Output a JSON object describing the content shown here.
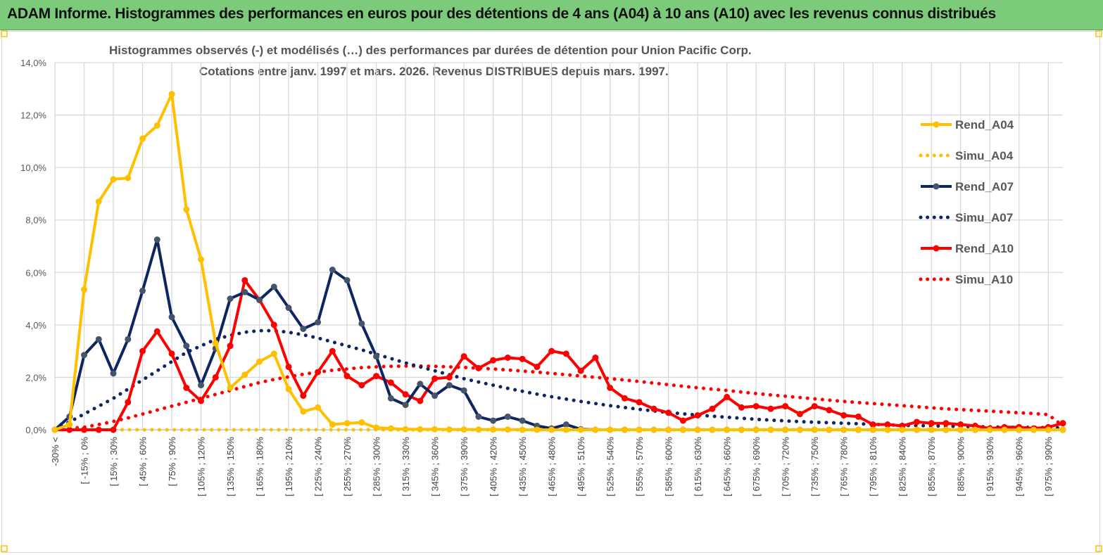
{
  "banner": {
    "title": "ADAM Informe. Histogrammes des performances en euros pour des détentions de 4 ans (A04) à 10 ans (A10) avec les revenus connus distribués"
  },
  "chart_data": {
    "type": "line",
    "title_line1": "Histogrammes observés (-) et modélisés (…) des performances par durées de détention pour Union Pacific Corp.",
    "title_line2": "Cotations entre janv. 1997 et mars. 2026.  Revenus DISTRIBUES depuis mars. 1997.",
    "ylim": [
      0,
      14
    ],
    "y_ticks": [
      "0,0%",
      "2,0%",
      "4,0%",
      "6,0%",
      "8,0%",
      "10,0%",
      "12,0%",
      "14,0%"
    ],
    "y_unit": "%",
    "grid": true,
    "legend_position": "right",
    "x_tick_labels": [
      "-30% <",
      "[ -15% ; 0%",
      "[ 15% ; 30%",
      "[ 45% ; 60%",
      "[ 75% ; 90%",
      "[ 105% ; 120%",
      "[ 135% ; 150%",
      "[ 165% ; 180%",
      "[ 195% ; 210%",
      "[ 225% ; 240%",
      "[ 255% ; 270%",
      "[ 285% ; 300%",
      "[ 315% ; 330%",
      "[ 345% ; 360%",
      "[ 375% ; 390%",
      "[ 405% ; 420%",
      "[ 435% ; 450%",
      "[ 465% ; 480%",
      "[ 495% ; 510%",
      "[ 525% ; 540%",
      "[ 555% ; 570%",
      "[ 585% ; 600%",
      "[ 615% ; 630%",
      "[ 645% ; 660%",
      "[ 675% ; 690%",
      "[ 705% ; 720%",
      "[ 735% ; 750%",
      "[ 765% ; 780%",
      "[ 795% ; 810%",
      "[ 825% ; 840%",
      "[ 855% ; 870%",
      "[ 885% ; 900%",
      "[ 915% ; 930%",
      "[ 945% ; 960%",
      "[ 975% ; 990%"
    ],
    "series": [
      {
        "name": "Rend_A04",
        "style": "solid",
        "markers": true,
        "color": "#ffc000",
        "values": [
          0,
          0.2,
          5.35,
          8.7,
          9.55,
          9.6,
          11.1,
          11.6,
          12.8,
          8.4,
          6.5,
          3.3,
          1.6,
          2.1,
          2.6,
          2.9,
          1.55,
          0.7,
          0.85,
          0.2,
          0.25,
          0.28,
          0.08,
          0.05,
          0.02,
          0.02,
          0.02,
          0.01,
          0.01,
          0.01,
          0.01,
          0.01,
          0,
          0,
          0,
          0,
          0,
          0,
          0,
          0,
          0,
          0,
          0,
          0,
          0,
          0,
          0,
          0,
          0,
          0,
          0,
          0,
          0,
          0,
          0,
          0,
          0,
          0,
          0,
          0,
          0,
          0,
          0,
          0,
          0,
          0,
          0,
          0,
          0,
          0
        ]
      },
      {
        "name": "Simu_A04",
        "style": "dotted",
        "markers": false,
        "color": "#ffc000",
        "values": [
          0,
          0,
          0,
          0,
          0,
          0,
          0,
          0,
          0,
          0,
          0,
          0,
          0,
          0,
          0,
          0,
          0,
          0,
          0,
          0,
          0,
          0,
          0,
          0,
          0,
          0,
          0,
          0,
          0,
          0,
          0,
          0,
          0,
          0,
          0,
          0,
          0,
          0,
          0,
          0,
          0,
          0,
          0,
          0,
          0,
          0,
          0,
          0,
          0,
          0,
          0,
          0,
          0,
          0,
          0,
          0,
          0,
          0,
          0,
          0,
          0,
          0,
          0,
          0,
          0,
          0,
          0,
          0,
          0,
          0
        ]
      },
      {
        "name": "Rend_A07",
        "style": "solid",
        "markers": true,
        "color": "#0d2560",
        "values": [
          0,
          0.5,
          2.85,
          3.45,
          2.15,
          3.45,
          5.3,
          7.25,
          4.3,
          3.2,
          1.7,
          3.1,
          5.0,
          5.25,
          4.95,
          5.45,
          4.65,
          3.85,
          4.1,
          6.1,
          5.7,
          4.05,
          2.8,
          1.2,
          0.95,
          1.75,
          1.3,
          1.7,
          1.5,
          0.5,
          0.35,
          0.5,
          0.35,
          0.15,
          0.05,
          0.2,
          0.02,
          0,
          0,
          0,
          0,
          0,
          0,
          0,
          0,
          0,
          0,
          0,
          0,
          0,
          0,
          0,
          0,
          0,
          0,
          0,
          0,
          0,
          0,
          0,
          0,
          0,
          0,
          0,
          0,
          0,
          0,
          0,
          0,
          0
        ]
      },
      {
        "name": "Simu_A07",
        "style": "dotted",
        "markers": false,
        "color": "#0d2560",
        "values": [
          0,
          0.3,
          0.6,
          0.9,
          1.2,
          1.55,
          1.9,
          2.25,
          2.6,
          2.95,
          3.2,
          3.45,
          3.6,
          3.72,
          3.78,
          3.78,
          3.72,
          3.62,
          3.5,
          3.35,
          3.2,
          3.05,
          2.88,
          2.72,
          2.55,
          2.4,
          2.25,
          2.1,
          1.95,
          1.82,
          1.7,
          1.58,
          1.47,
          1.36,
          1.26,
          1.17,
          1.08,
          1.0,
          0.92,
          0.85,
          0.78,
          0.72,
          0.66,
          0.61,
          0.56,
          0.52,
          0.48,
          0.44,
          0.4,
          0.37,
          0.34,
          0.31,
          0.29,
          0.27,
          0.25,
          0.23,
          0.21,
          0.19,
          0.17,
          0.16,
          0.15,
          0.14,
          0.13,
          0.12,
          0.11,
          0.1,
          0.09,
          0.09,
          0.08,
          0.07
        ]
      },
      {
        "name": "Rend_A10",
        "style": "solid",
        "markers": true,
        "color": "#ff0000",
        "values": [
          0,
          0,
          0,
          0,
          0,
          1.05,
          3.0,
          3.75,
          2.9,
          1.6,
          1.1,
          2.0,
          3.2,
          5.7,
          4.95,
          4.0,
          2.4,
          1.3,
          2.2,
          3.0,
          2.05,
          1.7,
          2.05,
          1.8,
          1.35,
          1.1,
          1.95,
          2.0,
          2.8,
          2.35,
          2.65,
          2.75,
          2.7,
          2.4,
          3.0,
          2.9,
          2.25,
          2.75,
          1.6,
          1.2,
          1.05,
          0.8,
          0.65,
          0.35,
          0.55,
          0.8,
          1.25,
          0.85,
          0.9,
          0.8,
          0.9,
          0.6,
          0.9,
          0.75,
          0.55,
          0.5,
          0.2,
          0.2,
          0.15,
          0.3,
          0.25,
          0.25,
          0.2,
          0.15,
          0.05,
          0.1,
          0.1,
          0.05,
          0.1,
          0.25
        ]
      },
      {
        "name": "Simu_A10",
        "style": "dotted",
        "markers": false,
        "color": "#ff0000",
        "values": [
          0,
          0.05,
          0.1,
          0.2,
          0.32,
          0.45,
          0.6,
          0.75,
          0.9,
          1.05,
          1.2,
          1.35,
          1.5,
          1.65,
          1.8,
          1.92,
          2.02,
          2.12,
          2.2,
          2.27,
          2.32,
          2.37,
          2.4,
          2.42,
          2.43,
          2.43,
          2.42,
          2.4,
          2.38,
          2.35,
          2.32,
          2.28,
          2.24,
          2.2,
          2.15,
          2.1,
          2.05,
          2.0,
          1.95,
          1.9,
          1.84,
          1.78,
          1.72,
          1.66,
          1.6,
          1.55,
          1.5,
          1.44,
          1.38,
          1.33,
          1.28,
          1.23,
          1.18,
          1.13,
          1.08,
          1.04,
          1.0,
          0.96,
          0.92,
          0.88,
          0.84,
          0.8,
          0.77,
          0.74,
          0.71,
          0.68,
          0.65,
          0.62,
          0.58,
          0.15
        ]
      }
    ]
  }
}
